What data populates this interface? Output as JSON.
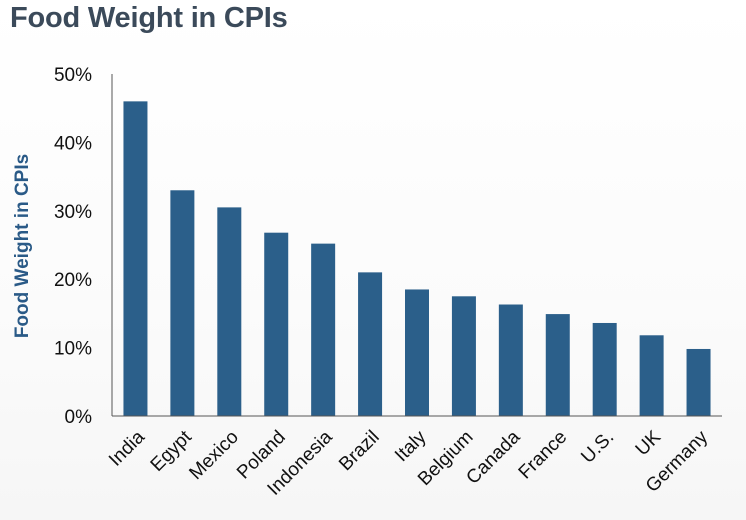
{
  "title": "Food Weight in CPIs",
  "colors": {
    "bar": "#2b5f8a",
    "title": "#3b4a5a",
    "axis_label": "#2a5a87",
    "axis_line": "#555555"
  },
  "chart_data": {
    "type": "bar",
    "title": "Food Weight in CPIs",
    "xlabel": "",
    "ylabel": "Food Weight in CPIs",
    "ylim": [
      0,
      50
    ],
    "yticks": [
      0,
      10,
      20,
      30,
      40,
      50
    ],
    "ytick_labels": [
      "0%",
      "10%",
      "20%",
      "30%",
      "40%",
      "50%"
    ],
    "grid": false,
    "categories": [
      "India",
      "Egypt",
      "Mexico",
      "Poland",
      "Indonesia",
      "Brazil",
      "Italy",
      "Belgium",
      "Canada",
      "France",
      "U.S.",
      "UK",
      "Germany"
    ],
    "values": [
      46,
      33,
      30.5,
      26.8,
      25.2,
      21,
      18.5,
      17.5,
      16.3,
      14.9,
      13.6,
      11.8,
      9.8
    ],
    "unit": "%"
  }
}
